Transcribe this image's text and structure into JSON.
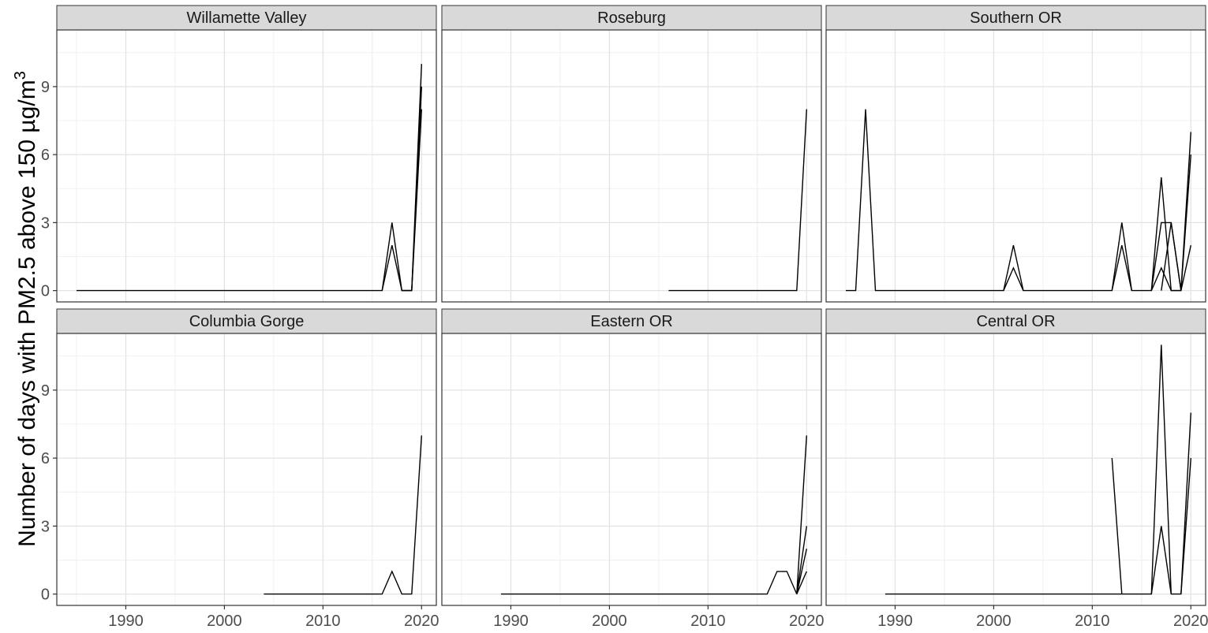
{
  "chart_data": {
    "type": "line",
    "ylabel": "Number of days with PM2.5 above 150 µg/m",
    "ylabel_superscript": "3",
    "xlim": [
      1983,
      2021.5
    ],
    "ylim": [
      -0.5,
      11.5
    ],
    "x_ticks": [
      1990,
      2000,
      2010,
      2020
    ],
    "y_ticks": [
      0,
      3,
      6,
      9
    ],
    "grid": true,
    "facets": [
      {
        "title": "Willamette Valley",
        "series": [
          {
            "x": [
              1985,
              1986,
              1987,
              1988,
              1989,
              1990,
              1991,
              1992,
              1993,
              1994,
              1995,
              1996,
              1997,
              1998,
              1999,
              2000,
              2001,
              2002,
              2003,
              2004,
              2005,
              2006,
              2007,
              2008,
              2009,
              2010,
              2011,
              2012,
              2013,
              2014,
              2015,
              2016,
              2017,
              2018,
              2019,
              2020
            ],
            "y": [
              0,
              0,
              0,
              0,
              0,
              0,
              0,
              0,
              0,
              0,
              0,
              0,
              0,
              0,
              0,
              0,
              0,
              0,
              0,
              0,
              0,
              0,
              0,
              0,
              0,
              0,
              0,
              0,
              0,
              0,
              0,
              0,
              3,
              0,
              0,
              10
            ]
          },
          {
            "x": [
              2016,
              2017,
              2018,
              2019,
              2020
            ],
            "y": [
              0,
              2,
              0,
              0,
              9
            ]
          },
          {
            "x": [
              2018,
              2019,
              2020
            ],
            "y": [
              0,
              0,
              8
            ]
          }
        ]
      },
      {
        "title": "Roseburg",
        "series": [
          {
            "x": [
              2006,
              2007,
              2008,
              2009,
              2010,
              2011,
              2012,
              2013,
              2014,
              2015,
              2016,
              2017,
              2018,
              2019,
              2020
            ],
            "y": [
              0,
              0,
              0,
              0,
              0,
              0,
              0,
              0,
              0,
              0,
              0,
              0,
              0,
              0,
              8
            ]
          }
        ]
      },
      {
        "title": "Southern OR",
        "series": [
          {
            "x": [
              1985,
              1986,
              1987,
              1988,
              1989,
              1990,
              1991,
              1992,
              1993,
              1994,
              1995,
              1996,
              1997,
              1998,
              1999,
              2000,
              2001,
              2002,
              2003,
              2004,
              2005,
              2006,
              2007,
              2008,
              2009,
              2010,
              2011,
              2012,
              2013,
              2014,
              2015,
              2016,
              2017,
              2018,
              2019,
              2020
            ],
            "y": [
              0,
              0,
              8,
              0,
              0,
              0,
              0,
              0,
              0,
              0,
              0,
              0,
              0,
              0,
              0,
              0,
              0,
              2,
              0,
              0,
              0,
              0,
              0,
              0,
              0,
              0,
              0,
              0,
              3,
              0,
              0,
              0,
              5,
              0,
              0,
              7
            ]
          },
          {
            "x": [
              2001,
              2002,
              2003
            ],
            "y": [
              0,
              1,
              0
            ]
          },
          {
            "x": [
              2012,
              2013,
              2014
            ],
            "y": [
              0,
              2,
              0
            ]
          },
          {
            "x": [
              2016,
              2017,
              2018,
              2019,
              2020
            ],
            "y": [
              0,
              3,
              3,
              0,
              6
            ]
          },
          {
            "x": [
              2016,
              2017,
              2018,
              2019,
              2020
            ],
            "y": [
              0,
              1,
              0,
              0,
              2
            ]
          },
          {
            "x": [
              2017,
              2018,
              2019
            ],
            "y": [
              0,
              3,
              0
            ]
          }
        ]
      },
      {
        "title": "Columbia Gorge",
        "series": [
          {
            "x": [
              2004,
              2005,
              2006,
              2007,
              2008,
              2009,
              2010,
              2011,
              2012,
              2013,
              2014,
              2015,
              2016,
              2017,
              2018,
              2019,
              2020
            ],
            "y": [
              0,
              0,
              0,
              0,
              0,
              0,
              0,
              0,
              0,
              0,
              0,
              0,
              0,
              1,
              0,
              0,
              7
            ]
          }
        ]
      },
      {
        "title": "Eastern OR",
        "series": [
          {
            "x": [
              1989,
              1990,
              1991,
              1992,
              1993,
              1994,
              1995,
              1996,
              1997,
              1998,
              1999,
              2000,
              2001,
              2002,
              2003,
              2004,
              2005,
              2006,
              2007,
              2008,
              2009,
              2010,
              2011,
              2012,
              2013,
              2014,
              2015,
              2016,
              2017,
              2018,
              2019,
              2020
            ],
            "y": [
              0,
              0,
              0,
              0,
              0,
              0,
              0,
              0,
              0,
              0,
              0,
              0,
              0,
              0,
              0,
              0,
              0,
              0,
              0,
              0,
              0,
              0,
              0,
              0,
              0,
              0,
              0,
              0,
              1,
              1,
              0,
              7
            ]
          },
          {
            "x": [
              2019,
              2020
            ],
            "y": [
              0,
              3
            ]
          },
          {
            "x": [
              2019,
              2020
            ],
            "y": [
              0,
              2
            ]
          },
          {
            "x": [
              2019,
              2020
            ],
            "y": [
              0,
              1
            ]
          }
        ]
      },
      {
        "title": "Central OR",
        "series": [
          {
            "x": [
              1989,
              1990,
              1991,
              1992,
              1993,
              1994,
              1995,
              1996,
              1997,
              1998,
              1999,
              2000,
              2001,
              2002,
              2003,
              2004,
              2005,
              2006,
              2007,
              2008,
              2009,
              2010,
              2011,
              2012,
              2013,
              2014,
              2015,
              2016,
              2017,
              2018,
              2019,
              2020
            ],
            "y": [
              0,
              0,
              0,
              0,
              0,
              0,
              0,
              0,
              0,
              0,
              0,
              0,
              0,
              0,
              0,
              0,
              0,
              0,
              0,
              0,
              0,
              0,
              0,
              0,
              0,
              0,
              0,
              0,
              11,
              0,
              0,
              8
            ]
          },
          {
            "x": [
              2012,
              2013
            ],
            "y": [
              6,
              0
            ]
          },
          {
            "x": [
              2016,
              2017,
              2018
            ],
            "y": [
              0,
              3,
              0
            ]
          },
          {
            "x": [
              2019,
              2020
            ],
            "y": [
              0,
              6
            ]
          }
        ]
      }
    ]
  }
}
